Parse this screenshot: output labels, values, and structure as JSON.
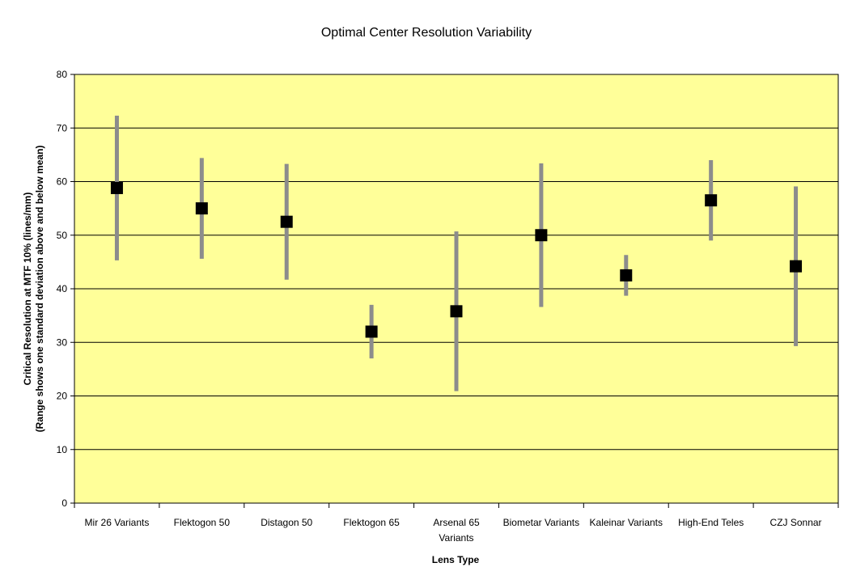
{
  "chart_data": {
    "type": "scatter",
    "title": "Optimal Center Resolution Variability",
    "xlabel": "Lens Type",
    "ylabel_line1": "Critical Resolution at MTF 10% (lines/mm)",
    "ylabel_line2": "(Range shows one standard deviation above and below mean)",
    "ylim": [
      0,
      80
    ],
    "yticks": [
      "0",
      "10",
      "20",
      "30",
      "40",
      "50",
      "60",
      "70",
      "80"
    ],
    "grid": true,
    "legend": "none",
    "categories": [
      [
        "Mir 26 Variants"
      ],
      [
        "Flektogon 50"
      ],
      [
        "Distagon 50"
      ],
      [
        "Flektogon 65"
      ],
      [
        "Arsenal 65",
        "Variants"
      ],
      [
        "Biometar Variants"
      ],
      [
        "Kaleinar Variants"
      ],
      [
        "High-End Teles"
      ],
      [
        "CZJ Sonnar"
      ]
    ],
    "mean": [
      58.8,
      55.0,
      52.5,
      32.0,
      35.8,
      50.0,
      42.5,
      56.5,
      44.2
    ],
    "low": [
      45.3,
      45.6,
      41.7,
      27.0,
      20.9,
      36.6,
      38.7,
      49.0,
      29.3
    ],
    "high": [
      72.3,
      64.4,
      63.3,
      37.0,
      50.7,
      63.4,
      46.3,
      64.0,
      59.1
    ],
    "colors": {
      "plot_background": "#FFFF99",
      "marker": "#000000",
      "range_bar": "#8C8C8C",
      "grid": "#000000"
    }
  }
}
